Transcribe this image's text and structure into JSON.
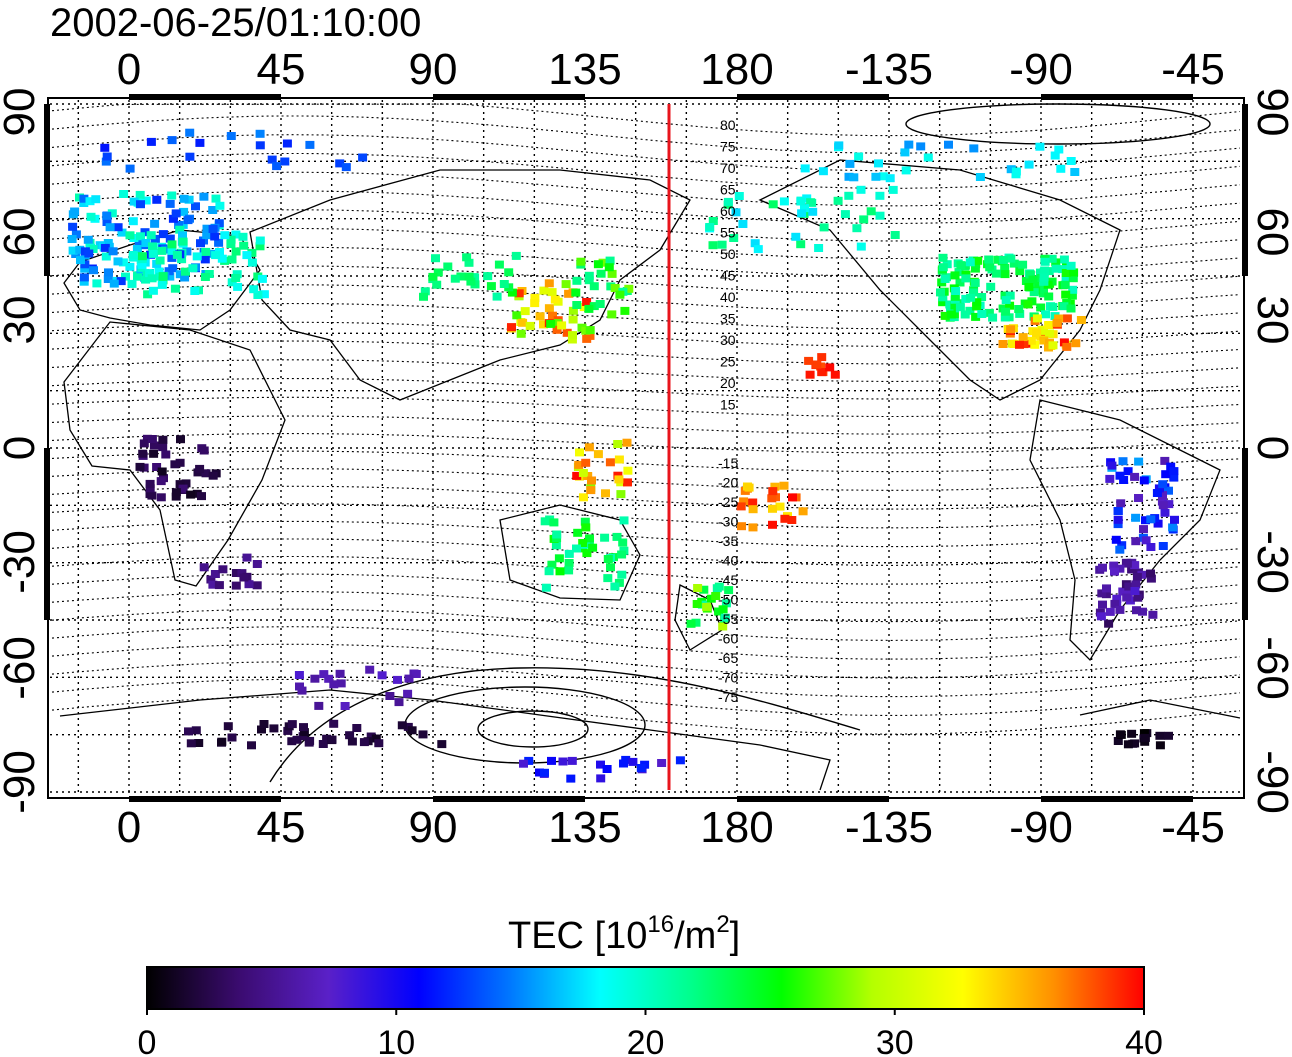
{
  "timestamp": "2002-06-25/01:10:00",
  "map": {
    "lon_tick_labels": [
      "0",
      "45",
      "90",
      "135",
      "180",
      "-135",
      "-90",
      "-45"
    ],
    "lat_tick_labels": [
      "90",
      "60",
      "30",
      "0",
      "-30",
      "-60",
      "-90"
    ],
    "grid": "dotted",
    "marker_line_color": "#e8141c",
    "isoline_labels_north": [
      "80",
      "75",
      "70",
      "65",
      "60",
      "55",
      "50",
      "45",
      "40",
      "35",
      "30",
      "25",
      "20",
      "15"
    ],
    "isoline_labels_south": [
      "-15",
      "-20",
      "-25",
      "-30",
      "-35",
      "-40",
      "-45",
      "-50",
      "-55",
      "-60",
      "-65",
      "-70",
      "-75"
    ]
  },
  "colorbar": {
    "title_prefix": "TEC  [10",
    "title_exp": "16",
    "title_mid": "/m",
    "title_exp2": "2",
    "title_suffix": "]",
    "tick_labels": [
      "0",
      "10",
      "20",
      "30",
      "40"
    ],
    "range": [
      0,
      40
    ],
    "colors": [
      "#000000",
      "#3a0b6e",
      "#5a20c8",
      "#0000ff",
      "#0077ff",
      "#00ffff",
      "#00ff8c",
      "#00ff00",
      "#b4ff00",
      "#ffff00",
      "#ff9000",
      "#ff0000"
    ]
  }
}
